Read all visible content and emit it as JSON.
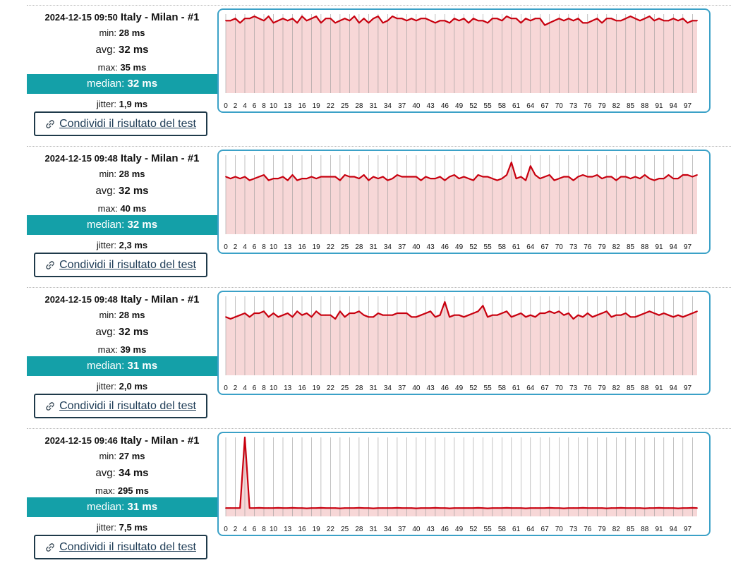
{
  "share_label": "Condividi il risultato del test",
  "colors": {
    "median_bar": "#14a0a8",
    "chart_border": "#3ba1c7",
    "line": "#c8000f",
    "fill": "#f7d7d7",
    "button_border": "#1f3a4a"
  },
  "tests": [
    {
      "timestamp": "2024-12-15 09:50",
      "location": "Italy - Milan - #1",
      "min_label": "min:",
      "min": "28 ms",
      "avg_label": "avg:",
      "avg": "32 ms",
      "max_label": "max:",
      "max": "35 ms",
      "median_label": "median:",
      "median": "32 ms",
      "jitter_label": "jitter:",
      "jitter": "1,9 ms",
      "chart_data": {
        "type": "line",
        "x": [
          0,
          1,
          2,
          3,
          4,
          5,
          6,
          7,
          8,
          9,
          10,
          11,
          12,
          13,
          14,
          15,
          16,
          17,
          18,
          19,
          20,
          21,
          22,
          23,
          24,
          25,
          26,
          27,
          28,
          29,
          30,
          31,
          32,
          33,
          34,
          35,
          36,
          37,
          38,
          39,
          40,
          41,
          42,
          43,
          44,
          45,
          46,
          47,
          48,
          49,
          50,
          51,
          52,
          53,
          54,
          55,
          56,
          57,
          58,
          59,
          60,
          61,
          62,
          63,
          64,
          65,
          66,
          67,
          68,
          69,
          70,
          71,
          72,
          73,
          74,
          75,
          76,
          77,
          78,
          79,
          80,
          81,
          82,
          83,
          84,
          85,
          86,
          87,
          88,
          89,
          90,
          91,
          92,
          93,
          94,
          95,
          96,
          97,
          98,
          99
        ],
        "y": [
          33,
          33,
          34,
          32,
          34,
          34,
          35,
          34,
          33,
          35,
          32,
          33,
          34,
          33,
          34,
          32,
          35,
          33,
          34,
          35,
          32,
          34,
          34,
          32,
          33,
          34,
          33,
          35,
          32,
          34,
          32,
          34,
          35,
          32,
          33,
          35,
          34,
          34,
          33,
          34,
          33,
          34,
          34,
          33,
          32,
          33,
          33,
          32,
          34,
          33,
          34,
          32,
          34,
          33,
          33,
          32,
          34,
          34,
          33,
          35,
          34,
          34,
          32,
          34,
          33,
          34,
          34,
          31,
          32,
          33,
          34,
          33,
          34,
          33,
          34,
          32,
          32,
          33,
          34,
          32,
          34,
          34,
          33,
          33,
          34,
          35,
          34,
          33,
          34,
          35,
          33,
          34,
          33,
          33,
          34,
          33,
          34,
          32,
          33,
          33
        ],
        "xticks": [
          "0",
          "2",
          "4",
          "6",
          "8",
          "10",
          "13",
          "16",
          "19",
          "22",
          "25",
          "28",
          "31",
          "34",
          "37",
          "40",
          "43",
          "46",
          "49",
          "52",
          "55",
          "58",
          "61",
          "64",
          "67",
          "70",
          "73",
          "76",
          "79",
          "82",
          "85",
          "88",
          "91",
          "94",
          "97"
        ],
        "ylim": [
          0,
          36
        ],
        "grid": true
      }
    },
    {
      "timestamp": "2024-12-15 09:48",
      "location": "Italy - Milan - #1",
      "min_label": "min:",
      "min": "28 ms",
      "avg_label": "avg:",
      "avg": "32 ms",
      "max_label": "max:",
      "max": "40 ms",
      "median_label": "median:",
      "median": "32 ms",
      "jitter_label": "jitter:",
      "jitter": "2,3 ms",
      "chart_data": {
        "type": "line",
        "x": [
          0,
          1,
          2,
          3,
          4,
          5,
          6,
          7,
          8,
          9,
          10,
          11,
          12,
          13,
          14,
          15,
          16,
          17,
          18,
          19,
          20,
          21,
          22,
          23,
          24,
          25,
          26,
          27,
          28,
          29,
          30,
          31,
          32,
          33,
          34,
          35,
          36,
          37,
          38,
          39,
          40,
          41,
          42,
          43,
          44,
          45,
          46,
          47,
          48,
          49,
          50,
          51,
          52,
          53,
          54,
          55,
          56,
          57,
          58,
          59,
          60,
          61,
          62,
          63,
          64,
          65,
          66,
          67,
          68,
          69,
          70,
          71,
          72,
          73,
          74,
          75,
          76,
          77,
          78,
          79,
          80,
          81,
          82,
          83,
          84,
          85,
          86,
          87,
          88,
          89,
          90,
          91,
          92,
          93,
          94,
          95,
          96,
          97,
          98,
          99
        ],
        "y": [
          32,
          31,
          32,
          31,
          32,
          30,
          31,
          32,
          33,
          30,
          31,
          31,
          32,
          30,
          33,
          30,
          31,
          31,
          32,
          31,
          32,
          32,
          32,
          32,
          30,
          33,
          32,
          32,
          31,
          33,
          30,
          32,
          31,
          32,
          30,
          31,
          33,
          32,
          32,
          32,
          32,
          30,
          32,
          31,
          31,
          32,
          30,
          32,
          33,
          31,
          32,
          31,
          30,
          33,
          32,
          32,
          31,
          30,
          31,
          33,
          40,
          31,
          32,
          30,
          38,
          33,
          31,
          32,
          33,
          30,
          31,
          32,
          32,
          30,
          32,
          33,
          32,
          32,
          33,
          31,
          32,
          32,
          30,
          32,
          32,
          31,
          32,
          31,
          33,
          31,
          30,
          31,
          31,
          33,
          31,
          31,
          33,
          33,
          32,
          33
        ],
        "xticks": [
          "0",
          "2",
          "4",
          "6",
          "8",
          "10",
          "13",
          "16",
          "19",
          "22",
          "25",
          "28",
          "31",
          "34",
          "37",
          "40",
          "43",
          "46",
          "49",
          "52",
          "55",
          "58",
          "61",
          "64",
          "67",
          "70",
          "73",
          "76",
          "79",
          "82",
          "85",
          "88",
          "91",
          "94",
          "97"
        ],
        "ylim": [
          0,
          44
        ],
        "grid": true
      }
    },
    {
      "timestamp": "2024-12-15 09:48",
      "location": "Italy - Milan - #1",
      "min_label": "min:",
      "min": "28 ms",
      "avg_label": "avg:",
      "avg": "32 ms",
      "max_label": "max:",
      "max": "39 ms",
      "median_label": "median:",
      "median": "31 ms",
      "jitter_label": "jitter:",
      "jitter": "2,0 ms",
      "chart_data": {
        "type": "line",
        "x": [
          0,
          1,
          2,
          3,
          4,
          5,
          6,
          7,
          8,
          9,
          10,
          11,
          12,
          13,
          14,
          15,
          16,
          17,
          18,
          19,
          20,
          21,
          22,
          23,
          24,
          25,
          26,
          27,
          28,
          29,
          30,
          31,
          32,
          33,
          34,
          35,
          36,
          37,
          38,
          39,
          40,
          41,
          42,
          43,
          44,
          45,
          46,
          47,
          48,
          49,
          50,
          51,
          52,
          53,
          54,
          55,
          56,
          57,
          58,
          59,
          60,
          61,
          62,
          63,
          64,
          65,
          66,
          67,
          68,
          69,
          70,
          71,
          72,
          73,
          74,
          75,
          76,
          77,
          78,
          79,
          80,
          81,
          82,
          83,
          84,
          85,
          86,
          87,
          88,
          89,
          90,
          91,
          92,
          93,
          94,
          95,
          96,
          97,
          98,
          99
        ],
        "y": [
          31,
          30,
          31,
          32,
          33,
          31,
          33,
          33,
          34,
          31,
          33,
          31,
          32,
          33,
          31,
          34,
          32,
          33,
          31,
          34,
          32,
          32,
          32,
          30,
          34,
          31,
          33,
          33,
          34,
          32,
          31,
          31,
          33,
          32,
          32,
          32,
          33,
          33,
          33,
          31,
          31,
          32,
          33,
          34,
          31,
          32,
          39,
          31,
          32,
          32,
          31,
          32,
          33,
          34,
          37,
          31,
          32,
          32,
          33,
          34,
          31,
          32,
          33,
          31,
          32,
          31,
          33,
          33,
          34,
          33,
          34,
          32,
          33,
          30,
          32,
          31,
          33,
          31,
          32,
          33,
          34,
          31,
          32,
          32,
          33,
          31,
          31,
          32,
          33,
          34,
          33,
          32,
          33,
          32,
          31,
          32,
          31,
          32,
          33,
          34
        ],
        "xticks": [
          "0",
          "2",
          "4",
          "6",
          "8",
          "10",
          "13",
          "16",
          "19",
          "22",
          "25",
          "28",
          "31",
          "34",
          "37",
          "40",
          "43",
          "46",
          "49",
          "52",
          "55",
          "58",
          "61",
          "64",
          "67",
          "70",
          "73",
          "76",
          "79",
          "82",
          "85",
          "88",
          "91",
          "94",
          "97"
        ],
        "ylim": [
          0,
          42
        ],
        "grid": true
      }
    },
    {
      "timestamp": "2024-12-15 09:46",
      "location": "Italy - Milan - #1",
      "min_label": "min:",
      "min": "27 ms",
      "avg_label": "avg:",
      "avg": "34 ms",
      "max_label": "max:",
      "max": "295 ms",
      "median_label": "median:",
      "median": "31 ms",
      "jitter_label": "jitter:",
      "jitter": "7,5 ms",
      "chart_data": {
        "type": "line",
        "x": [
          0,
          1,
          2,
          3,
          4,
          5,
          6,
          7,
          8,
          9,
          10,
          11,
          12,
          13,
          14,
          15,
          16,
          17,
          18,
          19,
          20,
          21,
          22,
          23,
          24,
          25,
          26,
          27,
          28,
          29,
          30,
          31,
          32,
          33,
          34,
          35,
          36,
          37,
          38,
          39,
          40,
          41,
          42,
          43,
          44,
          45,
          46,
          47,
          48,
          49,
          50,
          51,
          52,
          53,
          54,
          55,
          56,
          57,
          58,
          59,
          60,
          61,
          62,
          63,
          64,
          65,
          66,
          67,
          68,
          69,
          70,
          71,
          72,
          73,
          74,
          75,
          76,
          77,
          78,
          79,
          80,
          81,
          82,
          83,
          84,
          85,
          86,
          87,
          88,
          89,
          90,
          91,
          92,
          93,
          94,
          95,
          96,
          97,
          98,
          99
        ],
        "y": [
          31,
          31,
          31,
          31,
          295,
          31,
          31,
          32,
          31,
          31,
          31,
          32,
          31,
          31,
          32,
          31,
          31,
          30,
          31,
          31,
          32,
          31,
          31,
          31,
          30,
          31,
          31,
          31,
          32,
          31,
          31,
          30,
          31,
          31,
          31,
          31,
          32,
          31,
          31,
          31,
          30,
          31,
          31,
          31,
          32,
          31,
          31,
          30,
          31,
          31,
          31,
          31,
          31,
          32,
          31,
          30,
          31,
          31,
          31,
          32,
          31,
          31,
          31,
          30,
          31,
          31,
          31,
          31,
          32,
          31,
          31,
          30,
          31,
          31,
          31,
          32,
          31,
          31,
          31,
          31,
          30,
          31,
          31,
          32,
          31,
          31,
          31,
          31,
          30,
          31,
          31,
          32,
          31,
          31,
          31,
          30,
          31,
          31,
          32,
          31
        ],
        "xticks": [
          "0",
          "2",
          "4",
          "6",
          "8",
          "10",
          "13",
          "16",
          "19",
          "22",
          "25",
          "28",
          "31",
          "34",
          "37",
          "40",
          "43",
          "46",
          "49",
          "52",
          "55",
          "58",
          "61",
          "64",
          "67",
          "70",
          "73",
          "76",
          "79",
          "82",
          "85",
          "88",
          "91",
          "94",
          "97"
        ],
        "ylim": [
          0,
          295
        ],
        "grid": true
      }
    }
  ]
}
